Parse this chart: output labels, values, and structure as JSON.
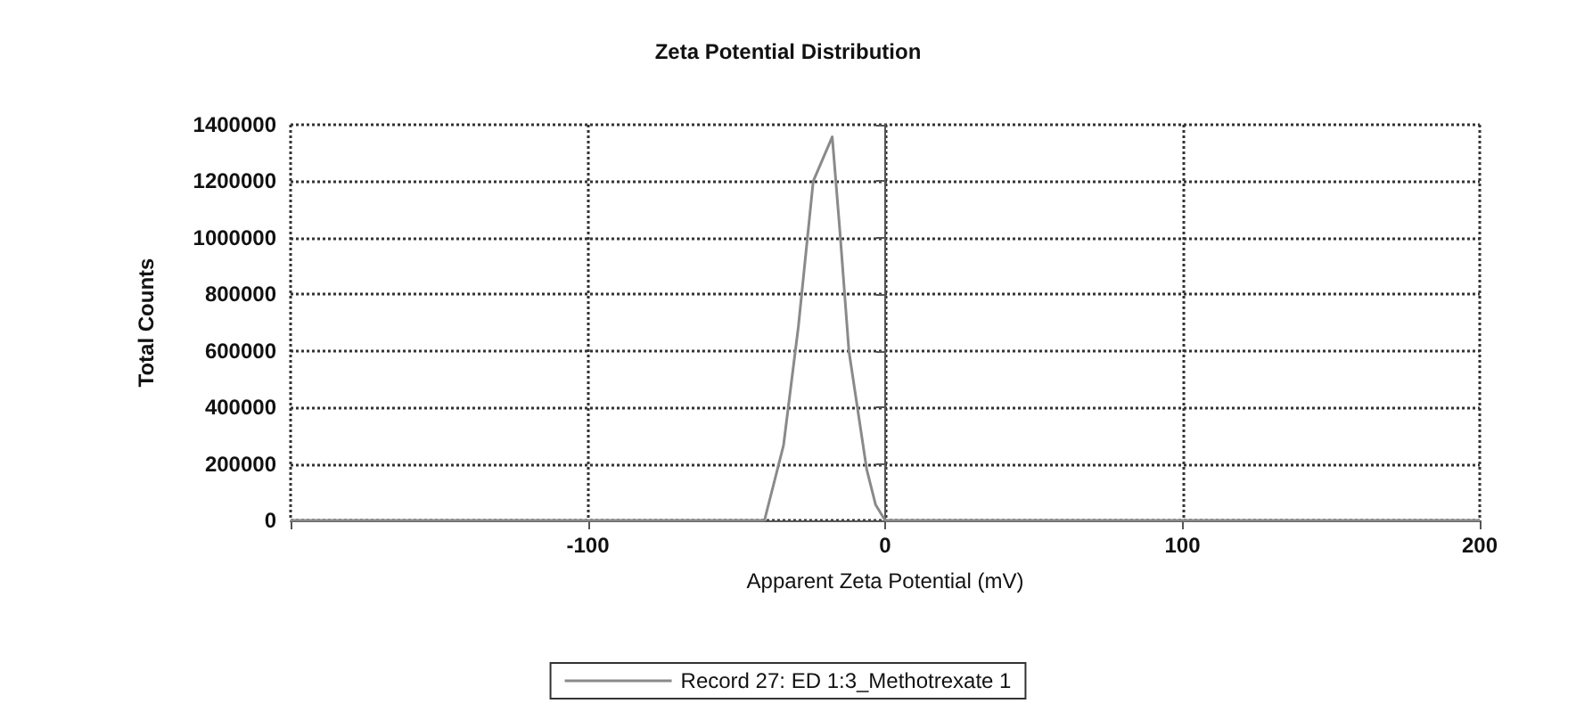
{
  "chart_data": {
    "type": "line",
    "title": "Zeta Potential Distribution",
    "xlabel": "Apparent Zeta Potential (mV)",
    "ylabel": "Total Counts",
    "series": [
      {
        "name": "Record 27: ED 1:3_Methotrexate 1",
        "color": "#8a8a8a",
        "x": [
          -200,
          -150,
          -100,
          -60,
          -40.6,
          -34.2,
          -29.2,
          -24.2,
          -17.8,
          -15.2,
          -12.2,
          -6.2,
          -3.2,
          0,
          50,
          100,
          150,
          200
        ],
        "values": [
          0,
          0,
          0,
          0,
          0,
          265000,
          685000,
          1200000,
          1357000,
          1020000,
          600000,
          180000,
          55000,
          0,
          0,
          0,
          0,
          0
        ]
      }
    ],
    "xlim": [
      -200,
      200
    ],
    "xticks": [
      {
        "value": -200,
        "label": null
      },
      -100,
      0,
      100,
      200
    ],
    "ylim": [
      0,
      1400000
    ],
    "yticks": [
      0,
      200000,
      400000,
      600000,
      800000,
      1000000,
      1200000,
      1400000
    ],
    "grid": true,
    "legend": "bottom",
    "marker": "none",
    "line_style": "solid"
  }
}
